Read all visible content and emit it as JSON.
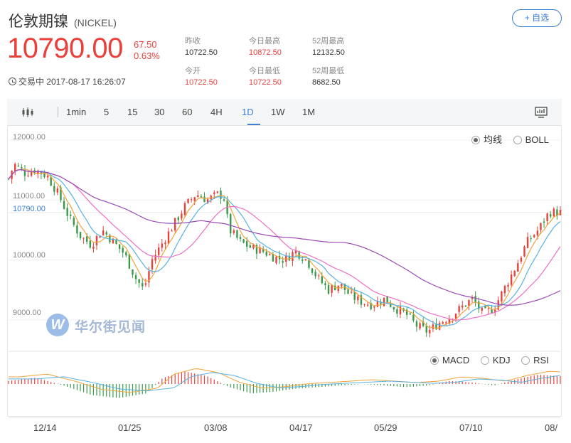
{
  "header": {
    "title": "伦敦期镍",
    "code": "(NICKEL)",
    "add_button": "+ 自选"
  },
  "quote": {
    "price": "10790.00",
    "change": "67.50",
    "change_pct": "0.63%",
    "status": "交易中 2017-08-17 16:26:07"
  },
  "stats": [
    {
      "label": "昨收",
      "value": "10722.50",
      "color": "#333333"
    },
    {
      "label": "今日最高",
      "value": "10872.50",
      "color": "#e8413c"
    },
    {
      "label": "52周最高",
      "value": "12132.50",
      "color": "#333333"
    },
    {
      "label": "今开",
      "value": "10722.50",
      "color": "#e8413c"
    },
    {
      "label": "今日最低",
      "value": "10722.50",
      "color": "#e8413c"
    },
    {
      "label": "52周最低",
      "value": "8682.50",
      "color": "#333333"
    }
  ],
  "toolbar": {
    "periods": [
      "1min",
      "5",
      "15",
      "30",
      "60",
      "4H",
      "1D",
      "1W",
      "1M"
    ],
    "active": "1D",
    "chart_type_icon": "candlestick-icon",
    "fullscreen_icon": "monitor-icon"
  },
  "overlay_options": {
    "options": [
      "均线",
      "BOLL"
    ],
    "selected": "均线"
  },
  "indicator_options": {
    "options": [
      "MACD",
      "KDJ",
      "RSI"
    ],
    "selected": "MACD"
  },
  "watermark": {
    "text": "华尔街见闻",
    "logo_letter": "W"
  },
  "colors": {
    "up": "#e8413c",
    "down": "#3a9a4a",
    "accent": "#3f7fd6",
    "ma5": "#f0a33a",
    "ma10": "#58b2e0",
    "ma20": "#ee6fc6",
    "ma60": "#9a4cb4"
  },
  "chart_data": {
    "type": "candlestick",
    "current_price": "10790.00",
    "y_ticks": [
      "12000.00",
      "11000.00",
      "10000.00",
      "9000.00"
    ],
    "ylim": [
      8500,
      12200
    ],
    "x_labels": [
      "12/14",
      "01/25",
      "03/08",
      "04/17",
      "05/29",
      "07/10",
      "08/"
    ],
    "x_label_positions": [
      0.07,
      0.23,
      0.39,
      0.55,
      0.71,
      0.87,
      1.0
    ],
    "close_anchors": [
      [
        0.0,
        11350
      ],
      [
        0.01,
        11600
      ],
      [
        0.03,
        11450
      ],
      [
        0.05,
        11500
      ],
      [
        0.07,
        11400
      ],
      [
        0.09,
        11100
      ],
      [
        0.11,
        10700
      ],
      [
        0.13,
        10400
      ],
      [
        0.15,
        10250
      ],
      [
        0.17,
        10500
      ],
      [
        0.19,
        10300
      ],
      [
        0.21,
        10100
      ],
      [
        0.23,
        9700
      ],
      [
        0.245,
        9500
      ],
      [
        0.26,
        10000
      ],
      [
        0.28,
        10300
      ],
      [
        0.3,
        10600
      ],
      [
        0.32,
        10900
      ],
      [
        0.34,
        11100
      ],
      [
        0.36,
        11000
      ],
      [
        0.38,
        11100
      ],
      [
        0.39,
        11050
      ],
      [
        0.4,
        10500
      ],
      [
        0.42,
        10300
      ],
      [
        0.44,
        10200
      ],
      [
        0.46,
        10150
      ],
      [
        0.48,
        10050
      ],
      [
        0.5,
        10000
      ],
      [
        0.52,
        10150
      ],
      [
        0.54,
        10000
      ],
      [
        0.56,
        9700
      ],
      [
        0.58,
        9500
      ],
      [
        0.6,
        9600
      ],
      [
        0.62,
        9400
      ],
      [
        0.64,
        9300
      ],
      [
        0.66,
        9250
      ],
      [
        0.68,
        9350
      ],
      [
        0.7,
        9200
      ],
      [
        0.72,
        9100
      ],
      [
        0.74,
        8900
      ],
      [
        0.76,
        8800
      ],
      [
        0.78,
        8950
      ],
      [
        0.8,
        9050
      ],
      [
        0.82,
        9200
      ],
      [
        0.84,
        9350
      ],
      [
        0.86,
        9100
      ],
      [
        0.88,
        9200
      ],
      [
        0.9,
        9550
      ],
      [
        0.92,
        9900
      ],
      [
        0.94,
        10300
      ],
      [
        0.96,
        10500
      ],
      [
        0.98,
        10800
      ],
      [
        1.0,
        10790
      ]
    ],
    "macd_anchors": [
      [
        0.0,
        0.2
      ],
      [
        0.05,
        0.4
      ],
      [
        0.1,
        -0.1
      ],
      [
        0.15,
        -0.7
      ],
      [
        0.2,
        -0.9
      ],
      [
        0.25,
        -0.6
      ],
      [
        0.28,
        0.4
      ],
      [
        0.32,
        0.8
      ],
      [
        0.36,
        0.5
      ],
      [
        0.4,
        -0.2
      ],
      [
        0.44,
        -0.6
      ],
      [
        0.48,
        -0.5
      ],
      [
        0.52,
        -0.3
      ],
      [
        0.56,
        -0.2
      ],
      [
        0.6,
        -0.1
      ],
      [
        0.64,
        0.0
      ],
      [
        0.68,
        -0.1
      ],
      [
        0.72,
        -0.2
      ],
      [
        0.76,
        -0.1
      ],
      [
        0.8,
        0.2
      ],
      [
        0.84,
        0.1
      ],
      [
        0.88,
        -0.1
      ],
      [
        0.92,
        0.3
      ],
      [
        0.96,
        0.6
      ],
      [
        1.0,
        0.5
      ]
    ]
  }
}
